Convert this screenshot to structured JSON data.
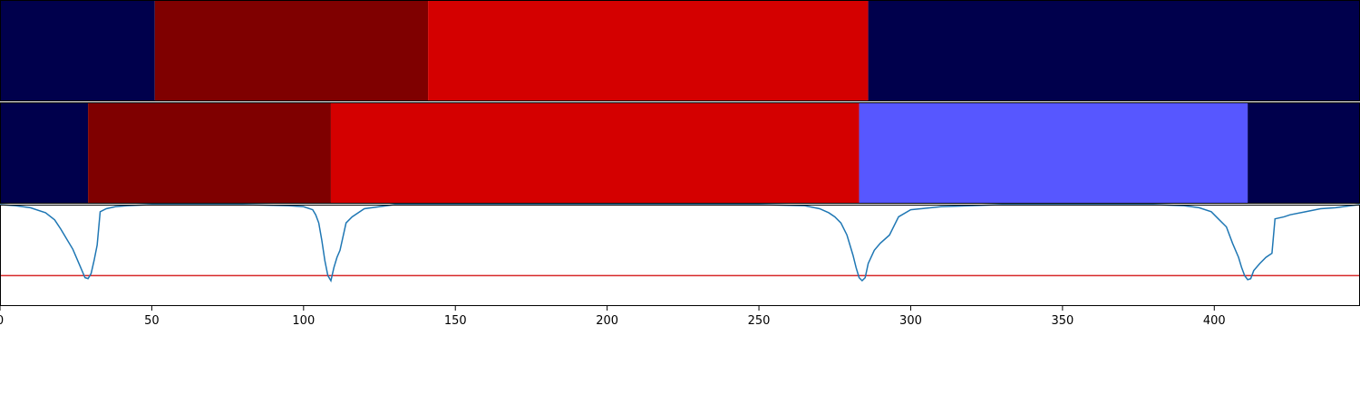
{
  "chart_data": {
    "type": "segmentation-timeline",
    "title": "",
    "xlabel": "",
    "ylabel": "",
    "xlim": [
      0,
      448
    ],
    "x_ticks": [
      0,
      50,
      100,
      150,
      200,
      250,
      300,
      350,
      400
    ],
    "segment_rows": [
      {
        "segments": [
          {
            "start": 0,
            "end": 51,
            "color": "#00004c"
          },
          {
            "start": 51,
            "end": 141,
            "color": "#7f0000"
          },
          {
            "start": 141,
            "end": 286,
            "color": "#d40000"
          },
          {
            "start": 286,
            "end": 448,
            "color": "#00004c"
          }
        ]
      },
      {
        "segments": [
          {
            "start": 0,
            "end": 29,
            "color": "#00004c"
          },
          {
            "start": 29,
            "end": 109,
            "color": "#7f0000"
          },
          {
            "start": 109,
            "end": 283,
            "color": "#d40000"
          },
          {
            "start": 283,
            "end": 411,
            "color": "#5757ff"
          },
          {
            "start": 411,
            "end": 448,
            "color": "#00004c"
          }
        ]
      }
    ],
    "line_panel": {
      "ylim": [
        0,
        1
      ],
      "threshold": 0.3,
      "threshold_color": "#d62728",
      "line_color": "#1f77b4",
      "x": [
        0,
        5,
        10,
        15,
        18,
        20,
        22,
        24,
        26,
        28,
        29,
        30,
        31,
        32,
        33,
        35,
        38,
        42,
        50,
        60,
        80,
        95,
        100,
        103,
        104,
        105,
        106,
        107,
        108,
        109,
        110,
        111,
        112,
        114,
        116,
        120,
        130,
        150,
        200,
        250,
        265,
        270,
        273,
        275,
        277,
        279,
        281,
        282,
        283,
        284,
        285,
        286,
        288,
        290,
        293,
        296,
        300,
        310,
        330,
        380,
        390,
        395,
        399,
        401,
        404,
        406,
        408,
        409,
        410,
        411,
        412,
        413,
        415,
        417,
        419,
        420,
        423,
        425,
        430,
        435,
        440,
        445,
        448
      ],
      "y": [
        1.0,
        0.99,
        0.97,
        0.92,
        0.85,
        0.76,
        0.66,
        0.56,
        0.42,
        0.28,
        0.27,
        0.32,
        0.45,
        0.6,
        0.93,
        0.96,
        0.98,
        0.99,
        1.0,
        1.0,
        1.0,
        0.99,
        0.98,
        0.95,
        0.9,
        0.82,
        0.65,
        0.45,
        0.3,
        0.25,
        0.38,
        0.48,
        0.55,
        0.82,
        0.88,
        0.96,
        1.0,
        1.0,
        1.0,
        1.0,
        0.99,
        0.96,
        0.92,
        0.88,
        0.82,
        0.7,
        0.5,
        0.38,
        0.28,
        0.25,
        0.28,
        0.42,
        0.55,
        0.62,
        0.7,
        0.88,
        0.95,
        0.98,
        1.0,
        1.0,
        0.99,
        0.97,
        0.93,
        0.87,
        0.78,
        0.62,
        0.48,
        0.38,
        0.3,
        0.26,
        0.27,
        0.35,
        0.42,
        0.48,
        0.52,
        0.86,
        0.88,
        0.9,
        0.93,
        0.96,
        0.97,
        0.99,
        1.0
      ]
    }
  }
}
